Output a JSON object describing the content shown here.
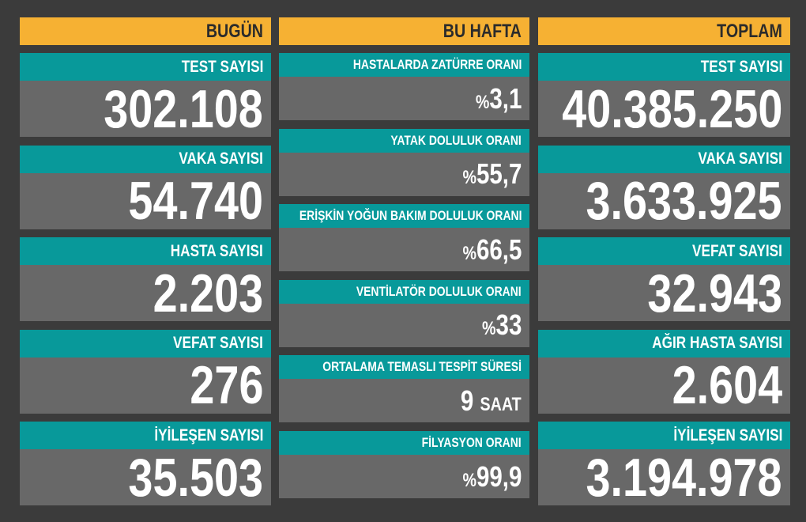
{
  "columns": [
    {
      "header": "BUGÜN",
      "cards": [
        {
          "label": "TEST SAYISI",
          "value": "302.108"
        },
        {
          "label": "VAKA SAYISI",
          "value": "54.740"
        },
        {
          "label": "HASTA SAYISI",
          "value": "2.203"
        },
        {
          "label": "VEFAT SAYISI",
          "value": "276"
        },
        {
          "label": "İYİLEŞEN SAYISI",
          "value": "35.503"
        }
      ]
    },
    {
      "header": "BU HAFTA",
      "cards": [
        {
          "label": "HASTALARDA ZATÜRRE ORANI",
          "prefix": "%",
          "value": "3,1"
        },
        {
          "label": "YATAK DOLULUK ORANI",
          "prefix": "%",
          "value": "55,7"
        },
        {
          "label": "ERİŞKİN YOĞUN BAKIM DOLULUK ORANI",
          "prefix": "%",
          "value": "66,5"
        },
        {
          "label": "VENTİLATÖR DOLULUK ORANI",
          "prefix": "%",
          "value": "33"
        },
        {
          "label": "ORTALAMA TEMASLI TESPİT SÜRESİ",
          "value": "9",
          "suffix": "SAAT"
        },
        {
          "label": "FİLYASYON ORANI",
          "prefix": "%",
          "value": "99,9"
        }
      ]
    },
    {
      "header": "TOPLAM",
      "cards": [
        {
          "label": "TEST SAYISI",
          "value": "40.385.250"
        },
        {
          "label": "VAKA SAYISI",
          "value": "3.633.925"
        },
        {
          "label": "VEFAT SAYISI",
          "value": "32.943"
        },
        {
          "label": "AĞIR HASTA SAYISI",
          "value": "2.604"
        },
        {
          "label": "İYİLEŞEN SAYISI",
          "value": "3.194.978"
        }
      ]
    }
  ]
}
